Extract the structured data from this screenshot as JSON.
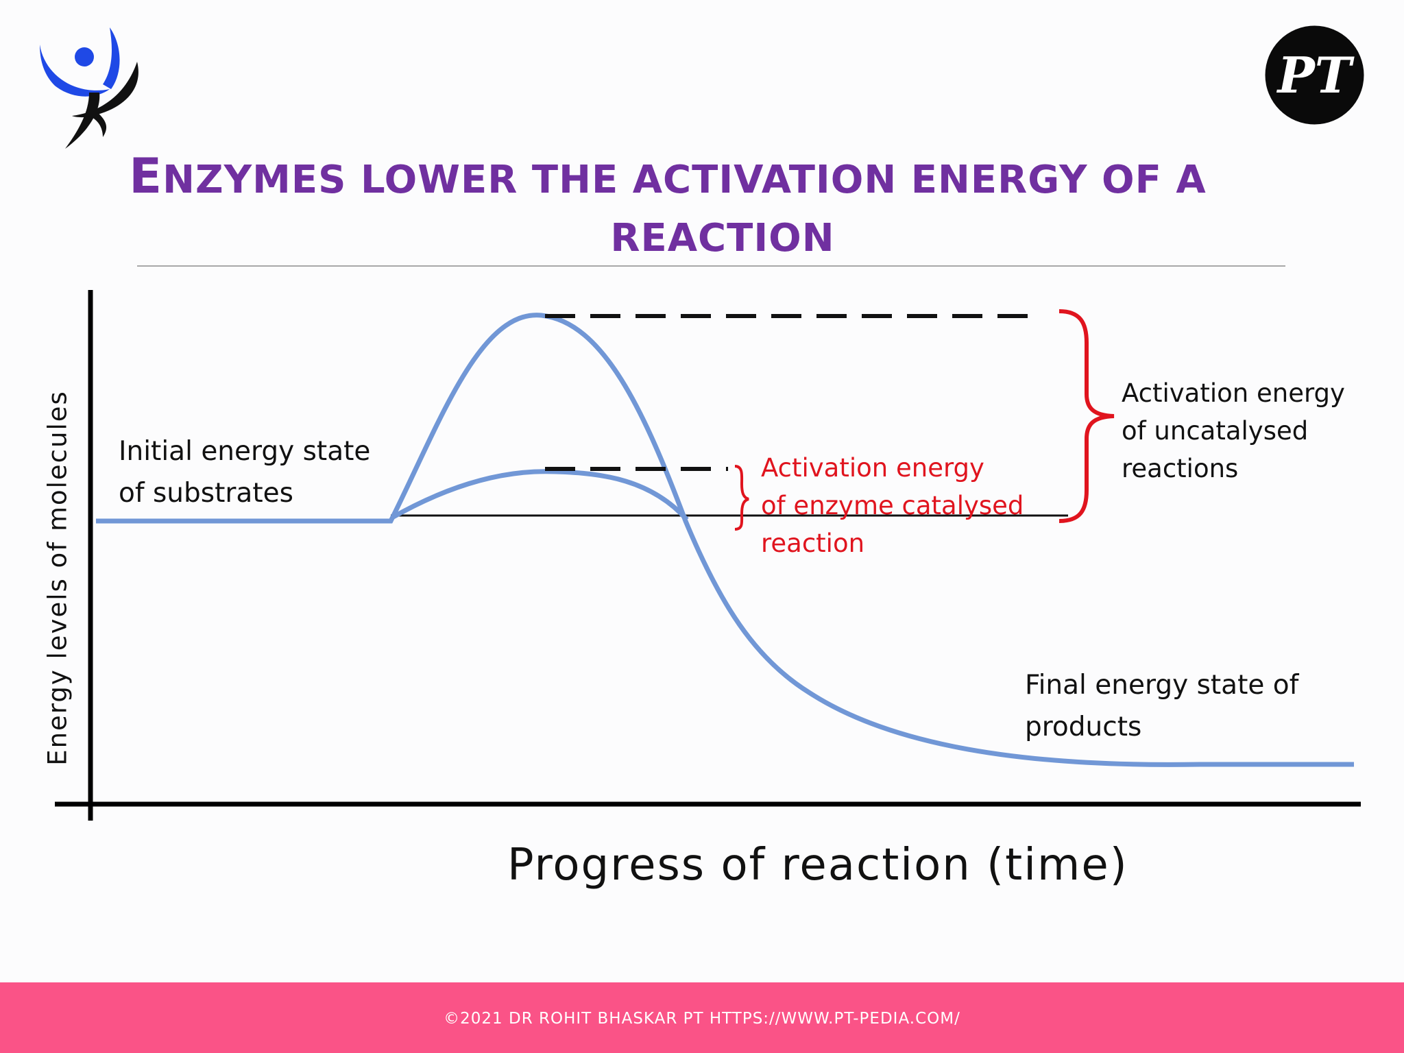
{
  "slide": {
    "title_line1_first": "E",
    "title_line1_rest": "NZYMES LOWER THE ACTIVATION ENERGY OF A",
    "title_line2": "REACTION",
    "footer": "©2021 DR ROHIT BHASKAR PT HTTPS://WWW.PT-PEDIA.COM/"
  },
  "logos": {
    "right_text": "PT"
  },
  "diagram": {
    "y_axis_label": "Energy levels of molecules",
    "x_axis_label": "Progress of reaction (time)",
    "initial_state": [
      "Initial energy state",
      "of substrates"
    ],
    "final_state": [
      "Final energy state of",
      "products"
    ],
    "catalysed_label": [
      "Activation energy",
      "of enzyme catalysed",
      "reaction"
    ],
    "uncatalysed_label": [
      "Activation energy",
      "of uncatalysed",
      "reactions"
    ]
  },
  "colors": {
    "title": "#7030a0",
    "curve": "#7197d6",
    "bracket": "#e0141e",
    "footer_bar": "#fa5387",
    "logo_blue": "#1f49e6"
  }
}
